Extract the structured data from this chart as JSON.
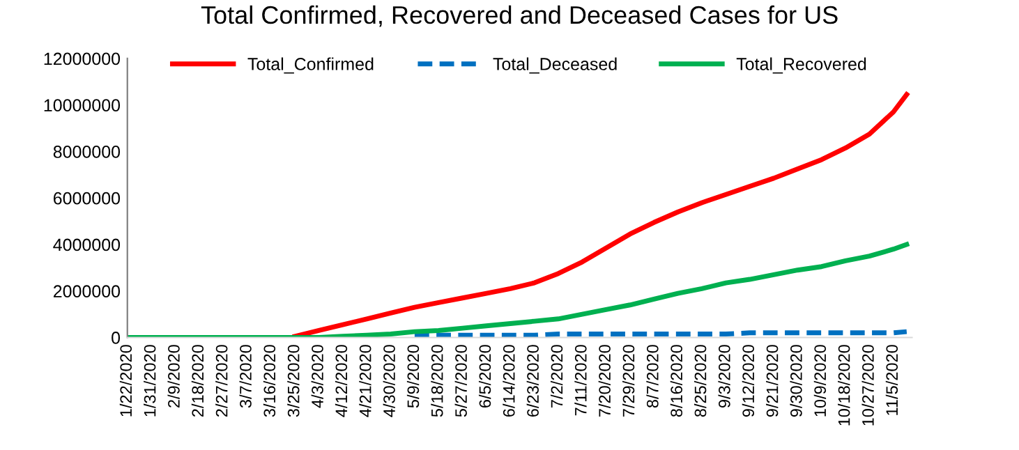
{
  "chart_data": {
    "type": "line",
    "title": "Total Confirmed, Recovered and Deceased Cases for US",
    "x": [
      "2020-01-22",
      "2020-02-18",
      "2020-03-07",
      "2020-03-16",
      "2020-03-22",
      "2020-03-25",
      "2020-04-03",
      "2020-04-12",
      "2020-04-21",
      "2020-04-30",
      "2020-05-09",
      "2020-05-18",
      "2020-05-27",
      "2020-06-05",
      "2020-06-14",
      "2020-06-23",
      "2020-07-02",
      "2020-07-11",
      "2020-07-20",
      "2020-07-29",
      "2020-08-07",
      "2020-08-16",
      "2020-08-25",
      "2020-09-03",
      "2020-09-12",
      "2020-09-21",
      "2020-09-30",
      "2020-10-09",
      "2020-10-18",
      "2020-10-27",
      "2020-11-05",
      "2020-11-10"
    ],
    "series": [
      {
        "name": "Total_Confirmed",
        "color": "#ff0000",
        "line_style": "solid",
        "values": [
          null,
          null,
          null,
          null,
          null,
          50000,
          300000,
          550000,
          800000,
          1050000,
          1300000,
          1500000,
          1700000,
          1900000,
          2100000,
          2350000,
          2750000,
          3250000,
          3850000,
          4450000,
          4950000,
          5400000,
          5800000,
          6150000,
          6500000,
          6850000,
          7250000,
          7650000,
          8150000,
          8750000,
          9700000,
          10450000
        ]
      },
      {
        "name": "Total_Deceased",
        "color": "#0070c0",
        "line_style": "dashed",
        "values": [
          null,
          null,
          null,
          null,
          null,
          null,
          null,
          null,
          null,
          null,
          100000,
          100000,
          100000,
          100000,
          100000,
          100000,
          150000,
          150000,
          150000,
          150000,
          150000,
          150000,
          150000,
          150000,
          200000,
          200000,
          200000,
          200000,
          200000,
          200000,
          200000,
          250000
        ]
      },
      {
        "name": "Total_Recovered",
        "color": "#00b050",
        "line_style": "solid",
        "values": [
          0,
          0,
          0,
          0,
          0,
          0,
          0,
          50000,
          100000,
          150000,
          250000,
          300000,
          400000,
          500000,
          600000,
          700000,
          800000,
          1000000,
          1200000,
          1400000,
          1650000,
          1900000,
          2100000,
          2350000,
          2500000,
          2700000,
          2900000,
          3050000,
          3300000,
          3500000,
          3800000,
          4000000
        ]
      }
    ],
    "xlim": [
      "2020-01-22",
      "2020-11-12"
    ],
    "xticks": [
      {
        "value": "2020-01-22",
        "label": "1/22/2020"
      },
      {
        "value": "2020-01-31",
        "label": "1/31/2020"
      },
      {
        "value": "2020-02-09",
        "label": "2/9/2020"
      },
      {
        "value": "2020-02-18",
        "label": "2/18/2020"
      },
      {
        "value": "2020-02-27",
        "label": "2/27/2020"
      },
      {
        "value": "2020-03-07",
        "label": "3/7/2020"
      },
      {
        "value": "2020-03-16",
        "label": "3/16/2020"
      },
      {
        "value": "2020-03-25",
        "label": "3/25/2020"
      },
      {
        "value": "2020-04-03",
        "label": "4/3/2020"
      },
      {
        "value": "2020-04-12",
        "label": "4/12/2020"
      },
      {
        "value": "2020-04-21",
        "label": "4/21/2020"
      },
      {
        "value": "2020-04-30",
        "label": "4/30/2020"
      },
      {
        "value": "2020-05-09",
        "label": "5/9/2020"
      },
      {
        "value": "2020-05-18",
        "label": "5/18/2020"
      },
      {
        "value": "2020-05-27",
        "label": "5/27/2020"
      },
      {
        "value": "2020-06-05",
        "label": "6/5/2020"
      },
      {
        "value": "2020-06-14",
        "label": "6/14/2020"
      },
      {
        "value": "2020-06-23",
        "label": "6/23/2020"
      },
      {
        "value": "2020-07-02",
        "label": "7/2/2020"
      },
      {
        "value": "2020-07-11",
        "label": "7/11/2020"
      },
      {
        "value": "2020-07-20",
        "label": "7/20/2020"
      },
      {
        "value": "2020-07-29",
        "label": "7/29/2020"
      },
      {
        "value": "2020-08-07",
        "label": "8/7/2020"
      },
      {
        "value": "2020-08-16",
        "label": "8/16/2020"
      },
      {
        "value": "2020-08-25",
        "label": "8/25/2020"
      },
      {
        "value": "2020-09-03",
        "label": "9/3/2020"
      },
      {
        "value": "2020-09-12",
        "label": "9/12/2020"
      },
      {
        "value": "2020-09-21",
        "label": "9/21/2020"
      },
      {
        "value": "2020-09-30",
        "label": "9/30/2020"
      },
      {
        "value": "2020-10-09",
        "label": "10/9/2020"
      },
      {
        "value": "2020-10-18",
        "label": "10/18/2020"
      },
      {
        "value": "2020-10-27",
        "label": "10/27/2020"
      },
      {
        "value": "2020-11-05",
        "label": "11/5/2020"
      }
    ],
    "ylim": [
      0,
      12000000
    ],
    "yticks": [
      0,
      2000000,
      4000000,
      6000000,
      8000000,
      10000000,
      12000000
    ],
    "legend": "top",
    "grid": false,
    "marker": "none"
  }
}
